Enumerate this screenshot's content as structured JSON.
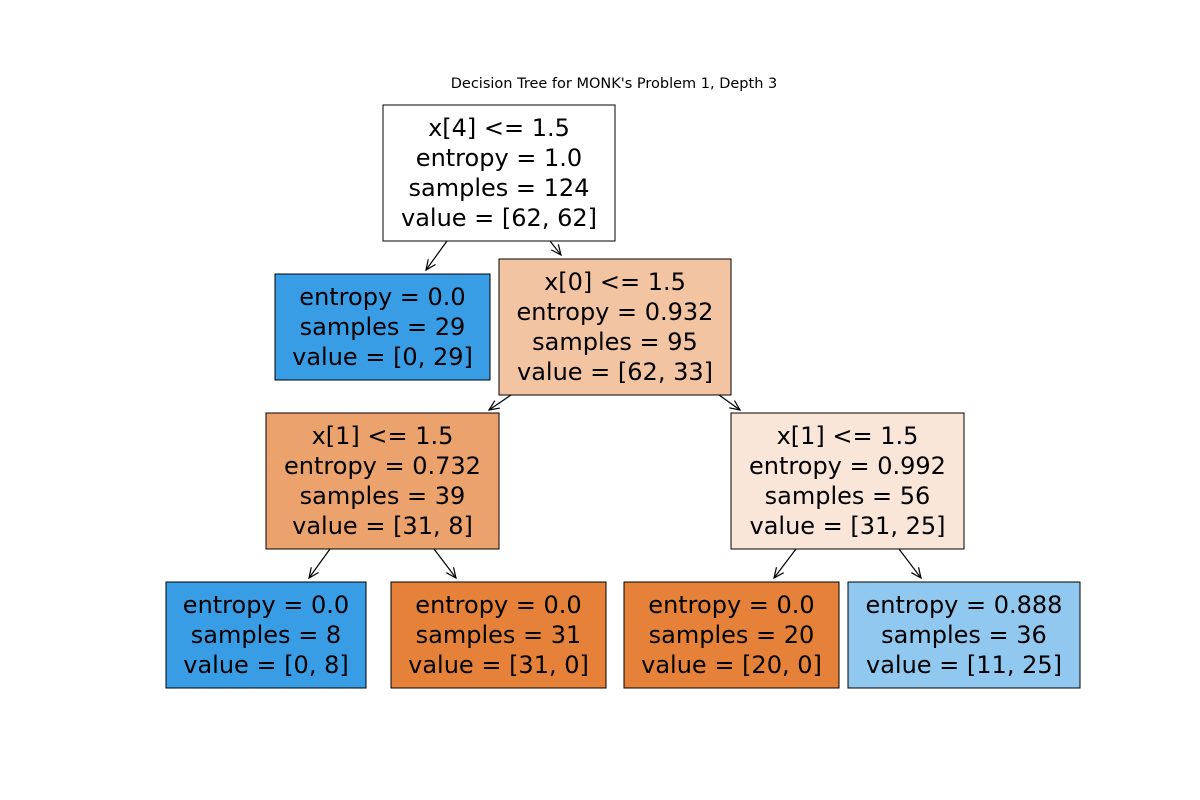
{
  "title": "Decision Tree for MONK's Problem 1, Depth 3",
  "nodes": [
    {
      "id": "root",
      "lines": [
        "x[4] <= 1.5",
        "entropy = 1.0",
        "samples = 124",
        "value = [62, 62]"
      ],
      "fill": "#ffffff"
    },
    {
      "id": "n1",
      "lines": [
        "entropy = 0.0",
        "samples = 29",
        "value = [0, 29]"
      ],
      "fill": "#399de5"
    },
    {
      "id": "n2",
      "lines": [
        "x[0] <= 1.5",
        "entropy = 0.932",
        "samples = 95",
        "value = [62, 33]"
      ],
      "fill": "#f3c4a2"
    },
    {
      "id": "n3",
      "lines": [
        "x[1] <= 1.5",
        "entropy = 0.732",
        "samples = 39",
        "value = [31, 8]"
      ],
      "fill": "#eca26c"
    },
    {
      "id": "n4",
      "lines": [
        "x[1] <= 1.5",
        "entropy = 0.992",
        "samples = 56",
        "value = [31, 25]"
      ],
      "fill": "#fae6d9"
    },
    {
      "id": "n5",
      "lines": [
        "entropy = 0.0",
        "samples = 8",
        "value = [0, 8]"
      ],
      "fill": "#399de5"
    },
    {
      "id": "n6",
      "lines": [
        "entropy = 0.0",
        "samples = 31",
        "value = [31, 0]"
      ],
      "fill": "#e58139"
    },
    {
      "id": "n7",
      "lines": [
        "entropy = 0.0",
        "samples = 20",
        "value = [20, 0]"
      ],
      "fill": "#e58139"
    },
    {
      "id": "n8",
      "lines": [
        "entropy = 0.888",
        "samples = 36",
        "value = [11, 25]"
      ],
      "fill": "#90c8f0"
    }
  ],
  "edges": [
    {
      "from": "root",
      "to": "n1"
    },
    {
      "from": "root",
      "to": "n2"
    },
    {
      "from": "n2",
      "to": "n3"
    },
    {
      "from": "n2",
      "to": "n4"
    },
    {
      "from": "n3",
      "to": "n5"
    },
    {
      "from": "n3",
      "to": "n6"
    },
    {
      "from": "n4",
      "to": "n7"
    },
    {
      "from": "n4",
      "to": "n8"
    }
  ]
}
